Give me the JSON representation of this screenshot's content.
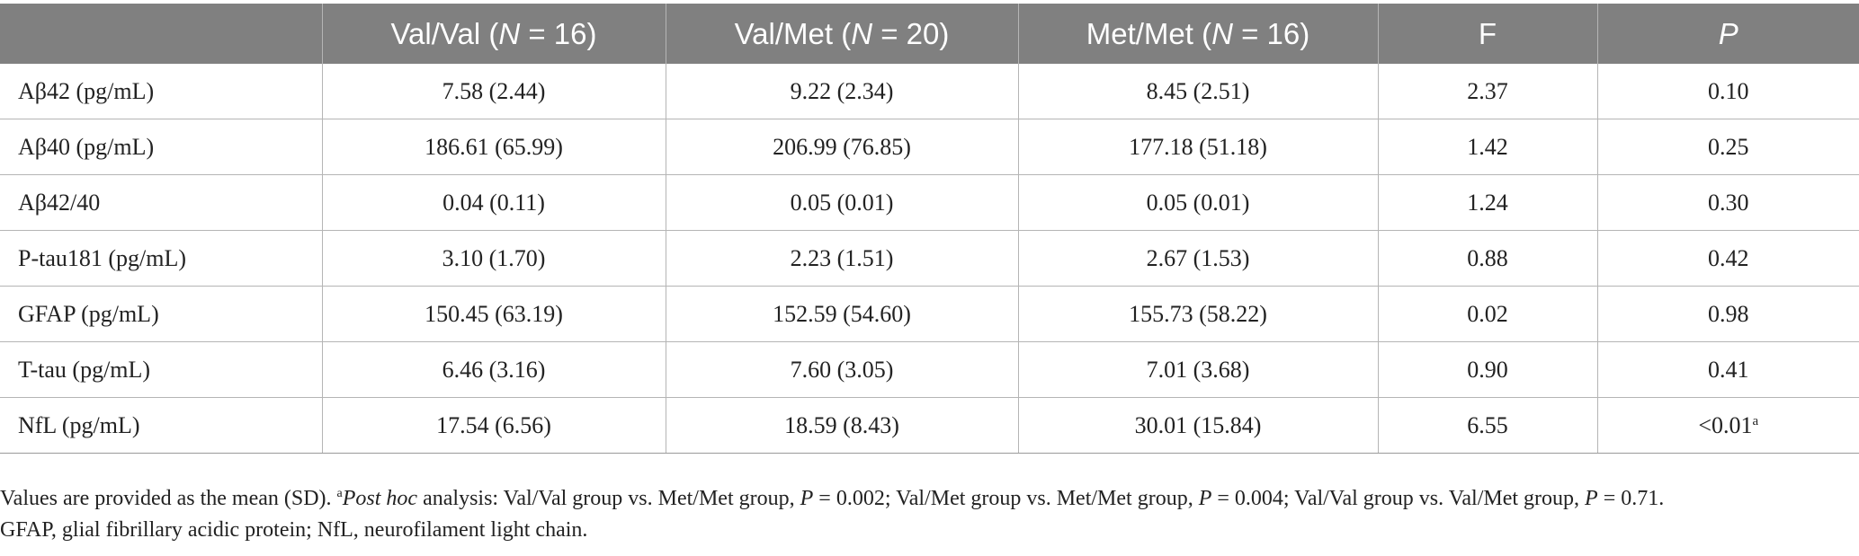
{
  "table": {
    "headers": [
      {
        "text": "",
        "italic_part": "",
        "suffix": ""
      },
      {
        "text": "Val/Val (",
        "italic_part": "N",
        "suffix": " = 16)"
      },
      {
        "text": "Val/Met (",
        "italic_part": "N",
        "suffix": " = 20)"
      },
      {
        "text": "Met/Met (",
        "italic_part": "N",
        "suffix": " = 16)"
      },
      {
        "text": "F",
        "italic_part": "",
        "suffix": ""
      },
      {
        "text": "",
        "italic_part": "P",
        "suffix": ""
      }
    ],
    "rows": [
      {
        "label": "Aβ42 (pg/mL)",
        "val_val": "7.58 (2.44)",
        "val_met": "9.22 (2.34)",
        "met_met": "8.45 (2.51)",
        "f": "2.37",
        "p": "0.10",
        "p_mark": ""
      },
      {
        "label": "Aβ40 (pg/mL)",
        "val_val": "186.61 (65.99)",
        "val_met": "206.99 (76.85)",
        "met_met": "177.18 (51.18)",
        "f": "1.42",
        "p": "0.25",
        "p_mark": ""
      },
      {
        "label": "Aβ42/40",
        "val_val": "0.04 (0.11)",
        "val_met": "0.05 (0.01)",
        "met_met": "0.05 (0.01)",
        "f": "1.24",
        "p": "0.30",
        "p_mark": ""
      },
      {
        "label": "P-tau181 (pg/mL)",
        "val_val": "3.10 (1.70)",
        "val_met": "2.23 (1.51)",
        "met_met": "2.67 (1.53)",
        "f": "0.88",
        "p": "0.42",
        "p_mark": ""
      },
      {
        "label": "GFAP (pg/mL)",
        "val_val": "150.45 (63.19)",
        "val_met": "152.59 (54.60)",
        "met_met": "155.73 (58.22)",
        "f": "0.02",
        "p": "0.98",
        "p_mark": ""
      },
      {
        "label": "T-tau (pg/mL)",
        "val_val": "6.46 (3.16)",
        "val_met": "7.60 (3.05)",
        "met_met": "7.01 (3.68)",
        "f": "0.90",
        "p": "0.41",
        "p_mark": ""
      },
      {
        "label": "NfL (pg/mL)",
        "val_val": "17.54 (6.56)",
        "val_met": "18.59 (8.43)",
        "met_met": "30.01 (15.84)",
        "f": "6.55",
        "p": "<0.01",
        "p_mark": "a"
      }
    ]
  },
  "footnote": {
    "line1_prefix": "Values are provided as the mean (SD). ",
    "marker": "a",
    "post_hoc_label": "Post hoc",
    "line1_text1": " analysis: Val/Val group vs. Met/Met group, ",
    "p1_label": "P",
    "p1_value": " = 0.002; Val/Met group vs. Met/Met group, ",
    "p2_label": "P",
    "p2_value": " = 0.004; Val/Val group vs. Val/Met group, ",
    "p3_label": "P",
    "p3_value": " = 0.71.",
    "line2": "GFAP, glial fibrillary acidic protein; NfL, neurofilament light chain."
  }
}
